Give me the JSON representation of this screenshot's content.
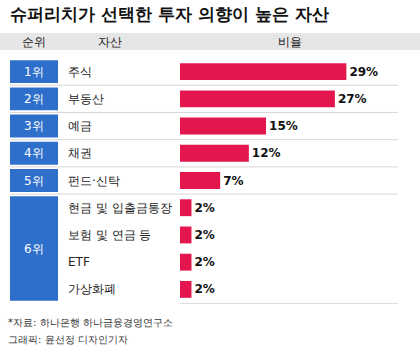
{
  "chart_data": {
    "type": "bar",
    "title": "슈퍼리치가 선택한 투자 의향이 높은 자산",
    "column_headers": [
      "순위",
      "자산",
      "비율"
    ],
    "ranks": [
      "1위",
      "2위",
      "3위",
      "4위",
      "5위",
      "6위",
      null,
      null,
      null
    ],
    "categories": [
      "주식",
      "부동산",
      "예금",
      "채권",
      "펀드·신탁",
      "현금 및 입출금통장",
      "보험 및 연금 등",
      "ETF",
      "가상화폐"
    ],
    "values": [
      29,
      27,
      15,
      12,
      7,
      2,
      2,
      2,
      2
    ],
    "value_labels": [
      "29%",
      "27%",
      "15%",
      "12%",
      "7%",
      "2%",
      "2%",
      "2%",
      "2%"
    ],
    "data_labels": true,
    "orientation": "horizontal",
    "color": "#e3174d",
    "xlim": [
      0,
      38
    ],
    "tick_labels": false,
    "grid": false,
    "notes": [
      "*자료: 하나은행 하나금융경영연구소",
      "그래픽: 윤선정 디자인기자"
    ]
  }
}
